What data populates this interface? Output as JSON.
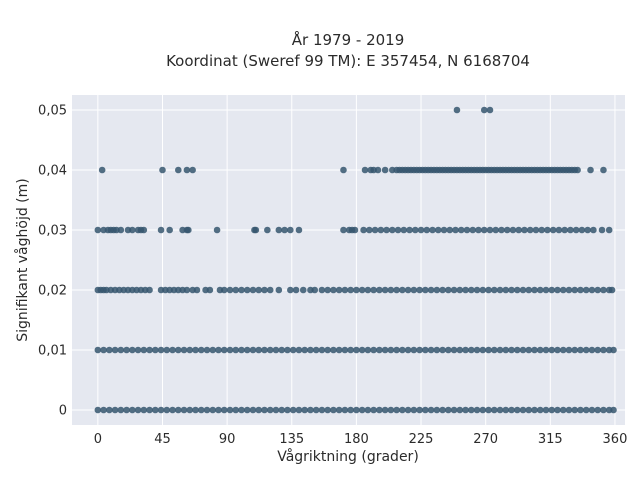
{
  "chart_data": {
    "type": "scatter",
    "title_line1": "År 1979 - 2019",
    "title_line2": "Koordinat (Sweref 99 TM): E 357454, N 6168704",
    "xlabel": "Vågriktning (grader)",
    "ylabel": "Signifikant våghöjd (m)",
    "xlim": [
      -18,
      367
    ],
    "ylim": [
      -0.0025,
      0.0525
    ],
    "xticks": [
      0,
      45,
      90,
      135,
      180,
      225,
      270,
      315,
      360
    ],
    "xtick_labels": [
      "0",
      "45",
      "90",
      "135",
      "180",
      "225",
      "270",
      "315",
      "360"
    ],
    "yticks": [
      0,
      0.01,
      0.02,
      0.03,
      0.04,
      0.05
    ],
    "ytick_labels": [
      "0",
      "0,01",
      "0,02",
      "0,03",
      "0,04",
      "0,05"
    ],
    "grid": true,
    "marker_color": "#36566e",
    "plot_background": "#e5e8f0",
    "series": [
      {
        "y": 0,
        "x": [
          0,
          4,
          8,
          12,
          16,
          20,
          24,
          28,
          32,
          36,
          40,
          44,
          48,
          52,
          56,
          60,
          64,
          68,
          72,
          76,
          80,
          84,
          88,
          92,
          96,
          100,
          104,
          108,
          112,
          116,
          120,
          124,
          128,
          132,
          136,
          140,
          144,
          148,
          152,
          156,
          160,
          164,
          168,
          172,
          176,
          180,
          184,
          188,
          192,
          196,
          200,
          204,
          208,
          212,
          216,
          220,
          224,
          228,
          232,
          236,
          240,
          244,
          248,
          252,
          256,
          260,
          264,
          268,
          272,
          276,
          280,
          284,
          288,
          292,
          296,
          300,
          304,
          308,
          312,
          316,
          320,
          324,
          328,
          332,
          336,
          340,
          344,
          348,
          352,
          356,
          359
        ]
      },
      {
        "y": 0.01,
        "x": [
          0,
          4,
          8,
          12,
          16,
          20,
          24,
          28,
          32,
          36,
          40,
          44,
          48,
          52,
          56,
          60,
          64,
          68,
          72,
          76,
          80,
          84,
          88,
          92,
          96,
          100,
          104,
          108,
          112,
          116,
          120,
          124,
          128,
          132,
          136,
          140,
          144,
          148,
          152,
          156,
          160,
          164,
          168,
          172,
          176,
          180,
          184,
          188,
          192,
          196,
          200,
          204,
          208,
          212,
          216,
          220,
          224,
          228,
          232,
          236,
          240,
          244,
          248,
          252,
          256,
          260,
          264,
          268,
          272,
          276,
          280,
          284,
          288,
          292,
          296,
          300,
          304,
          308,
          312,
          316,
          320,
          324,
          328,
          332,
          336,
          340,
          344,
          348,
          352,
          356,
          359
        ]
      },
      {
        "y": 0.02,
        "x": [
          0,
          2,
          4,
          6,
          9,
          12,
          15,
          18,
          21,
          24,
          27,
          30,
          33,
          36,
          44,
          47,
          50,
          53,
          56,
          59,
          62,
          66,
          69,
          75,
          78,
          85,
          88,
          92,
          96,
          100,
          104,
          108,
          112,
          116,
          120,
          126,
          134,
          138,
          143,
          148,
          151,
          156,
          160,
          164,
          168,
          172,
          176,
          180,
          184,
          188,
          192,
          196,
          200,
          204,
          208,
          212,
          216,
          220,
          224,
          228,
          232,
          236,
          240,
          244,
          248,
          252,
          256,
          260,
          264,
          268,
          272,
          276,
          280,
          284,
          288,
          292,
          296,
          300,
          304,
          308,
          312,
          316,
          320,
          324,
          328,
          332,
          336,
          340,
          344,
          348,
          352,
          356,
          358
        ]
      },
      {
        "y": 0.03,
        "x": [
          0,
          4,
          7,
          9,
          11,
          13,
          16,
          21,
          24,
          28,
          30,
          32,
          44,
          50,
          59,
          62,
          63,
          83,
          109,
          110,
          118,
          126,
          130,
          134,
          140,
          171,
          175,
          177,
          179,
          185,
          189,
          193,
          197,
          201,
          205,
          209,
          213,
          217,
          221,
          225,
          229,
          233,
          237,
          241,
          245,
          249,
          253,
          257,
          261,
          265,
          269,
          273,
          277,
          281,
          285,
          289,
          293,
          297,
          301,
          305,
          309,
          313,
          317,
          321,
          325,
          329,
          333,
          337,
          341,
          345,
          351,
          356
        ]
      },
      {
        "y": 0.04,
        "x": [
          3,
          45,
          56,
          62,
          66,
          171,
          186,
          190,
          192,
          195,
          200,
          205,
          208,
          210,
          212,
          214,
          216,
          218,
          220,
          222,
          224,
          226,
          228,
          230,
          232,
          234,
          236,
          238,
          240,
          242,
          244,
          246,
          248,
          250,
          252,
          254,
          256,
          258,
          260,
          262,
          264,
          266,
          268,
          270,
          272,
          274,
          276,
          278,
          280,
          282,
          284,
          286,
          288,
          290,
          292,
          294,
          296,
          298,
          300,
          302,
          304,
          306,
          308,
          310,
          312,
          314,
          316,
          318,
          320,
          322,
          324,
          326,
          328,
          330,
          332,
          334,
          343,
          352
        ]
      },
      {
        "y": 0.05,
        "x": [
          250,
          269,
          273
        ]
      }
    ]
  }
}
